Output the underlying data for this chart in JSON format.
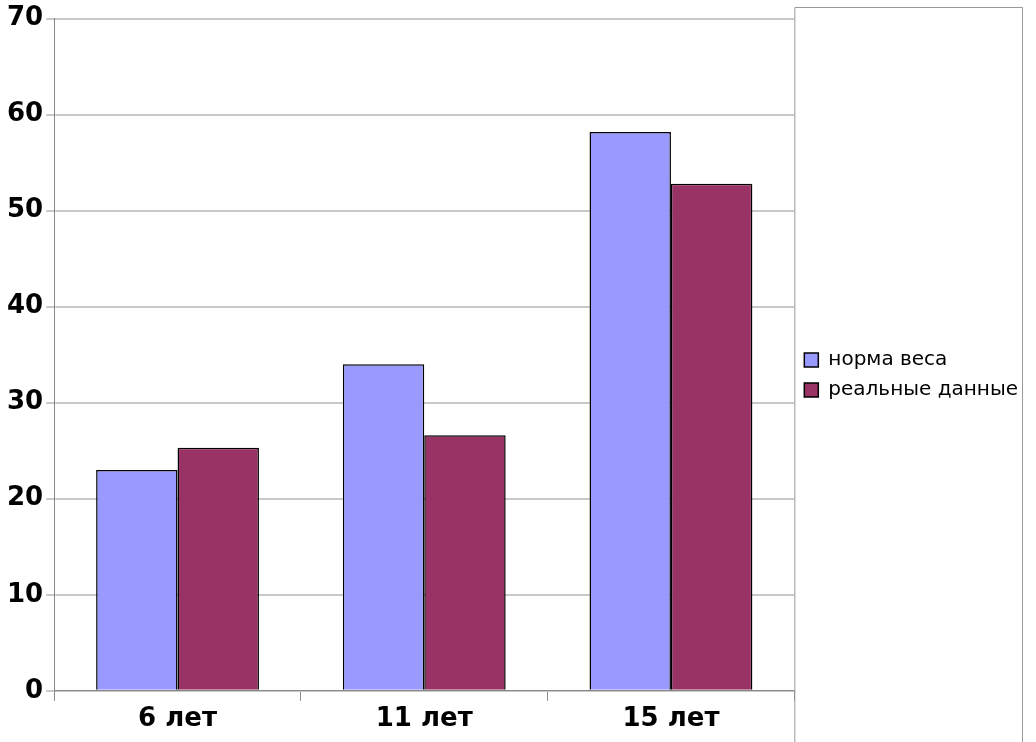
{
  "chart_data": {
    "type": "bar",
    "categories": [
      "6 лет",
      "11 лет",
      "15 лет"
    ],
    "series": [
      {
        "name": "норма веса",
        "color": "#9999ff",
        "values": [
          23,
          34,
          58.2
        ]
      },
      {
        "name": "реальные данные",
        "color": "#993366",
        "values": [
          25.3,
          26.6,
          52.8
        ]
      }
    ],
    "ylim": [
      0,
      70
    ],
    "yticks": [
      0,
      10,
      20,
      30,
      40,
      50,
      60,
      70
    ],
    "grid": "y",
    "legend": "right"
  }
}
